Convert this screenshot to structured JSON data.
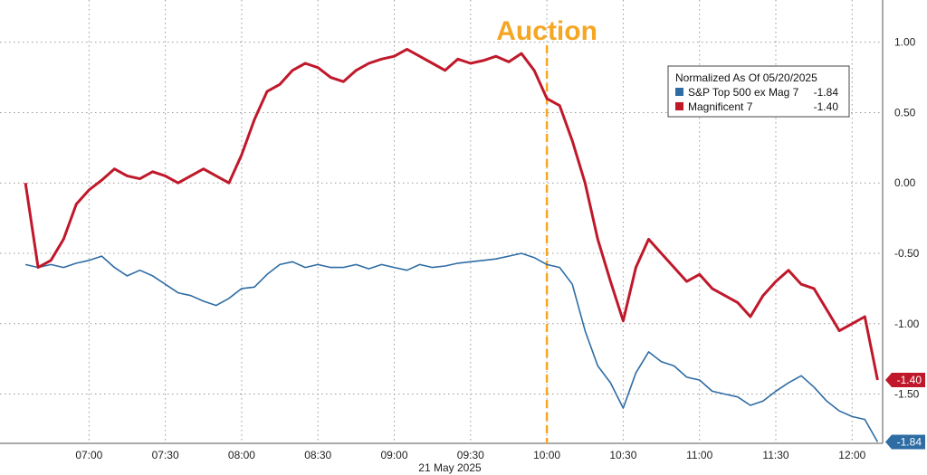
{
  "chart_data": {
    "type": "line",
    "title": "",
    "xlabel": "21 May 2025",
    "ylabel": "",
    "x_ticks": [
      "07:00",
      "07:30",
      "08:00",
      "08:30",
      "09:00",
      "09:30",
      "10:00",
      "10:30",
      "11:00",
      "11:30",
      "12:00"
    ],
    "ylim": [
      -1.85,
      1.3
    ],
    "y_ticks": [
      "1.00",
      "0.50",
      "0.00",
      "-0.50",
      "-1.00",
      "-1.50"
    ],
    "grid": true,
    "annotation": {
      "label": "Auction",
      "x": "10:00",
      "color": "#f5a623"
    },
    "legend": {
      "title": "Normalized As Of 05/20/2025",
      "position": "top-right"
    },
    "series": [
      {
        "name": "S&P Top 500 ex Mag 7",
        "last_value": "-1.84",
        "color": "#2e6ca4",
        "x": [
          "06:35",
          "06:40",
          "06:45",
          "06:50",
          "06:55",
          "07:00",
          "07:05",
          "07:10",
          "07:15",
          "07:20",
          "07:25",
          "07:30",
          "07:35",
          "07:40",
          "07:45",
          "07:50",
          "07:55",
          "08:00",
          "08:05",
          "08:10",
          "08:15",
          "08:20",
          "08:25",
          "08:30",
          "08:35",
          "08:40",
          "08:45",
          "08:50",
          "08:55",
          "09:00",
          "09:05",
          "09:10",
          "09:15",
          "09:20",
          "09:25",
          "09:30",
          "09:35",
          "09:40",
          "09:45",
          "09:50",
          "09:55",
          "10:00",
          "10:05",
          "10:10",
          "10:15",
          "10:20",
          "10:25",
          "10:30",
          "10:35",
          "10:40",
          "10:45",
          "10:50",
          "10:55",
          "11:00",
          "11:05",
          "11:10",
          "11:15",
          "11:20",
          "11:25",
          "11:30",
          "11:35",
          "11:40",
          "11:45",
          "11:50",
          "11:55",
          "12:00",
          "12:05",
          "12:10"
        ],
        "values": [
          -0.58,
          -0.6,
          -0.58,
          -0.6,
          -0.57,
          -0.55,
          -0.52,
          -0.6,
          -0.66,
          -0.62,
          -0.66,
          -0.72,
          -0.78,
          -0.8,
          -0.84,
          -0.87,
          -0.82,
          -0.75,
          -0.74,
          -0.65,
          -0.58,
          -0.56,
          -0.6,
          -0.58,
          -0.6,
          -0.6,
          -0.58,
          -0.61,
          -0.58,
          -0.6,
          -0.62,
          -0.58,
          -0.6,
          -0.59,
          -0.57,
          -0.56,
          -0.55,
          -0.54,
          -0.52,
          -0.5,
          -0.53,
          -0.58,
          -0.6,
          -0.72,
          -1.05,
          -1.3,
          -1.42,
          -1.6,
          -1.35,
          -1.2,
          -1.27,
          -1.3,
          -1.38,
          -1.4,
          -1.48,
          -1.5,
          -1.52,
          -1.58,
          -1.55,
          -1.48,
          -1.42,
          -1.37,
          -1.45,
          -1.55,
          -1.62,
          -1.66,
          -1.68,
          -1.84
        ]
      },
      {
        "name": "Magnificent 7",
        "last_value": "-1.40",
        "color": "#c0182b",
        "x": [
          "06:35",
          "06:40",
          "06:45",
          "06:50",
          "06:55",
          "07:00",
          "07:05",
          "07:10",
          "07:15",
          "07:20",
          "07:25",
          "07:30",
          "07:35",
          "07:40",
          "07:45",
          "07:50",
          "07:55",
          "08:00",
          "08:05",
          "08:10",
          "08:15",
          "08:20",
          "08:25",
          "08:30",
          "08:35",
          "08:40",
          "08:45",
          "08:50",
          "08:55",
          "09:00",
          "09:05",
          "09:10",
          "09:15",
          "09:20",
          "09:25",
          "09:30",
          "09:35",
          "09:40",
          "09:45",
          "09:50",
          "09:55",
          "10:00",
          "10:05",
          "10:10",
          "10:15",
          "10:20",
          "10:25",
          "10:30",
          "10:35",
          "10:40",
          "10:45",
          "10:50",
          "10:55",
          "11:00",
          "11:05",
          "11:10",
          "11:15",
          "11:20",
          "11:25",
          "11:30",
          "11:35",
          "11:40",
          "11:45",
          "11:50",
          "11:55",
          "12:00",
          "12:05",
          "12:10"
        ],
        "values": [
          0.0,
          -0.6,
          -0.55,
          -0.4,
          -0.15,
          -0.05,
          0.02,
          0.1,
          0.05,
          0.03,
          0.08,
          0.05,
          0.0,
          0.05,
          0.1,
          0.05,
          0.0,
          0.2,
          0.45,
          0.65,
          0.7,
          0.8,
          0.85,
          0.82,
          0.75,
          0.72,
          0.8,
          0.85,
          0.88,
          0.9,
          0.95,
          0.9,
          0.85,
          0.8,
          0.88,
          0.85,
          0.87,
          0.9,
          0.86,
          0.92,
          0.8,
          0.6,
          0.55,
          0.3,
          0.0,
          -0.4,
          -0.7,
          -0.98,
          -0.6,
          -0.4,
          -0.5,
          -0.6,
          -0.7,
          -0.65,
          -0.75,
          -0.8,
          -0.85,
          -0.95,
          -0.8,
          -0.7,
          -0.62,
          -0.72,
          -0.75,
          -0.9,
          -1.05,
          -1.0,
          -0.95,
          -1.4
        ]
      }
    ]
  }
}
